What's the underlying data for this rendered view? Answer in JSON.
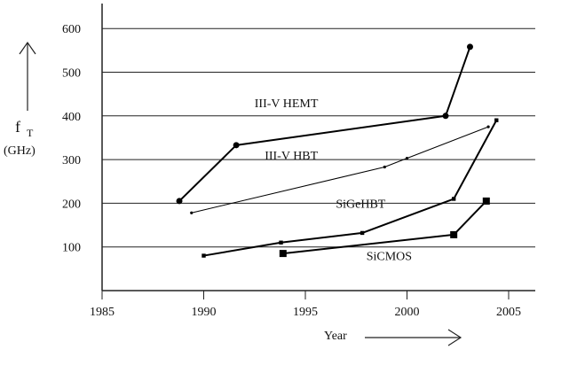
{
  "chart_data": {
    "type": "line",
    "title": "",
    "xlabel": "Year",
    "ylabel": {
      "main": "f",
      "subscript": "T",
      "unit": "(GHz)"
    },
    "xlim": [
      1985,
      2006
    ],
    "ylim": [
      0,
      640
    ],
    "x_ticks": [
      1985,
      1990,
      1995,
      2000,
      2005
    ],
    "y_ticks": [
      100,
      200,
      300,
      400,
      500,
      600
    ],
    "grid": "horizontal",
    "series": [
      {
        "name": "III-V HEMT",
        "marker": "circle",
        "stroke": "#000000",
        "points": [
          {
            "x": 1988.8,
            "y": 205
          },
          {
            "x": 1991.6,
            "y": 333
          },
          {
            "x": 2001.9,
            "y": 400
          },
          {
            "x": 2003.1,
            "y": 558
          }
        ]
      },
      {
        "name": "III-V HBT",
        "marker": "dot",
        "stroke": "#000000",
        "points": [
          {
            "x": 1989.4,
            "y": 178
          },
          {
            "x": 1998.9,
            "y": 283
          },
          {
            "x": 2000.0,
            "y": 303
          },
          {
            "x": 2004.0,
            "y": 375
          }
        ]
      },
      {
        "name": "SiGeHBT",
        "marker": "small-square",
        "stroke": "#000000",
        "points": [
          {
            "x": 1990.0,
            "y": 80
          },
          {
            "x": 1993.8,
            "y": 110
          },
          {
            "x": 1997.8,
            "y": 132
          },
          {
            "x": 2002.3,
            "y": 210
          },
          {
            "x": 2004.4,
            "y": 390
          }
        ]
      },
      {
        "name": "SiCMOS",
        "marker": "square",
        "stroke": "#000000",
        "points": [
          {
            "x": 1993.9,
            "y": 85
          },
          {
            "x": 2002.3,
            "y": 128
          },
          {
            "x": 2003.9,
            "y": 205
          }
        ]
      }
    ],
    "annotations": []
  }
}
